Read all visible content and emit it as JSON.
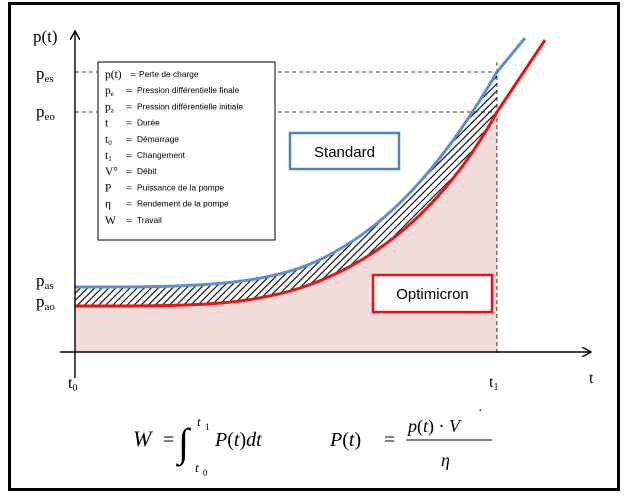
{
  "axes": {
    "y_label": "p(t)",
    "x_label": "t",
    "x_ticks": [
      "t0",
      "t1"
    ],
    "y_ticks": [
      "pes",
      "peo",
      "pas",
      "pao"
    ]
  },
  "legend": {
    "items": [
      {
        "symbol": "p(t)",
        "eq": "=",
        "text": "Perte de charge"
      },
      {
        "symbol": "pe",
        "eq": "=",
        "text": "Pression différentielle finale"
      },
      {
        "symbol": "pa",
        "eq": "=",
        "text": "Pression différentielle initiale"
      },
      {
        "symbol": "t",
        "eq": "=",
        "text": "Durée"
      },
      {
        "symbol": "t0",
        "eq": "=",
        "text": "Démarrage"
      },
      {
        "symbol": "t1",
        "eq": "=",
        "text": "Changement"
      },
      {
        "symbol": "V°",
        "eq": "=",
        "text": "Débit"
      },
      {
        "symbol": "P",
        "eq": "=",
        "text": "Puissance de la pompe"
      },
      {
        "symbol": "η",
        "eq": "=",
        "text": "Rendement de la pompe"
      },
      {
        "symbol": "W",
        "eq": "=",
        "text": "Travail"
      }
    ]
  },
  "labels": {
    "standard": "Standard",
    "optimicron": "Optimicron"
  },
  "formulas": {
    "work": "W = ∫ P(t) dt  (from t0 to t1)",
    "power": "P(t) = p(t) · V̇ / η"
  },
  "colors": {
    "standard_curve": "#5b8fd2",
    "optimicron_curve": "#ee1111",
    "fill": "#f2dcdb",
    "standard_box": "#4f81bd",
    "optimicron_box": "#ee1111"
  }
}
